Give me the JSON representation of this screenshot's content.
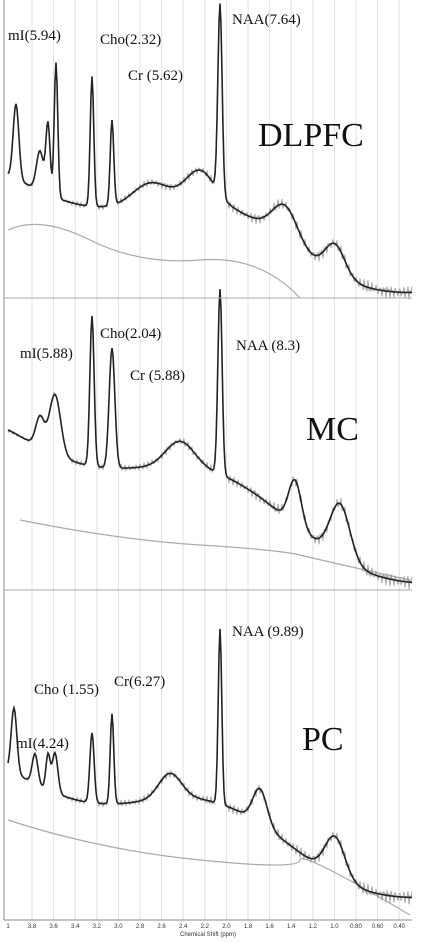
{
  "panels": [
    {
      "region": "DLPFC",
      "peaks": [
        "mI(5.94)",
        "Cho(2.32)",
        "Cr (5.62)",
        "NAA(7.64)"
      ]
    },
    {
      "region": "MC",
      "peaks": [
        "mI(5.88)",
        "Cho(2.04)",
        "Cr (5.88)",
        "NAA (8.3)"
      ]
    },
    {
      "region": "PC",
      "peaks": [
        "mI(4.24)",
        "Cho (1.55)",
        "Cr(6.27)",
        "NAA (9.89)"
      ]
    }
  ],
  "x_axis": {
    "ticks": [
      "1",
      "3.8",
      "3.6",
      "3.4",
      "3.2",
      "3.0",
      "2.8",
      "2.6",
      "2.4",
      "2.2",
      "2.0",
      "1.8",
      "1.6",
      "1.4",
      "1.2",
      "1.0",
      "0.80",
      "0.60",
      "0.40"
    ],
    "label": "Chemical Shift (ppm)"
  }
}
